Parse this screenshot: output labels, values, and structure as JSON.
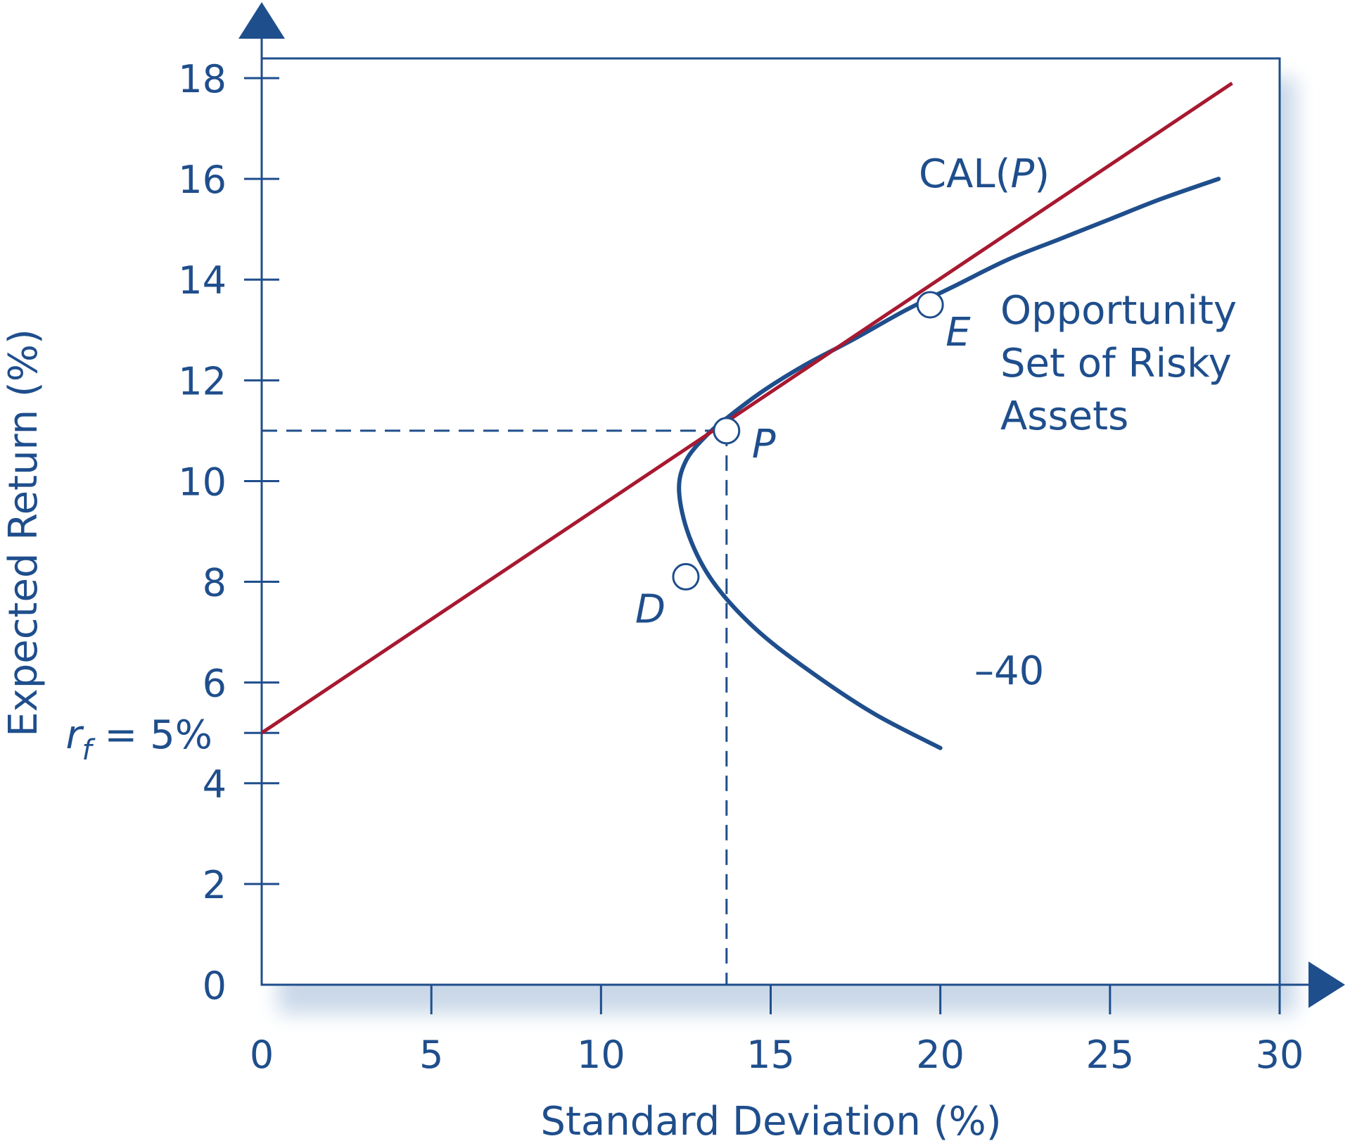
{
  "chart_data": {
    "type": "line",
    "xlabel": "Standard Deviation (%)",
    "ylabel": "Expected Return (%)",
    "xlim": [
      0,
      30
    ],
    "ylim": [
      0,
      18
    ],
    "x_ticks": [
      "0",
      "5",
      "10",
      "15",
      "20",
      "25",
      "30"
    ],
    "y_ticks": [
      "0",
      "2",
      "4",
      "6",
      "8",
      "10",
      "12",
      "14",
      "16",
      "18"
    ],
    "rf_label": {
      "var": "r",
      "sub": "f",
      "rest": " = 5%"
    },
    "rf": 5,
    "series": [
      {
        "name": "CAL(P)",
        "name_parts": [
          "CAL(",
          "P",
          ")"
        ],
        "color": "#a71930",
        "x": [
          0,
          28.6
        ],
        "y": [
          5,
          17.9
        ]
      },
      {
        "name": "Opportunity Set of Risky Assets",
        "name_lines": [
          "Opportunity",
          "Set of Risky",
          "Assets"
        ],
        "color": "#1f4e8c",
        "x": [
          20.0,
          18.0,
          16.0,
          14.5,
          13.3,
          12.6,
          12.3,
          12.5,
          13.1,
          13.8,
          14.8,
          16.0,
          17.4,
          19.0,
          20.5,
          22.0,
          23.5,
          25.0,
          26.5,
          28.2
        ],
        "y": [
          4.7,
          5.4,
          6.3,
          7.1,
          8.0,
          8.9,
          9.8,
          10.4,
          10.9,
          11.3,
          11.8,
          12.3,
          12.8,
          13.4,
          13.9,
          14.4,
          14.8,
          15.2,
          15.6,
          16.0
        ]
      }
    ],
    "points": [
      {
        "label": "P",
        "x": 13.7,
        "y": 11.0
      },
      {
        "label": "E",
        "x": 19.7,
        "y": 13.5
      },
      {
        "label": "D",
        "x": 12.5,
        "y": 8.1
      }
    ],
    "annotation": "–40",
    "grid": false
  }
}
